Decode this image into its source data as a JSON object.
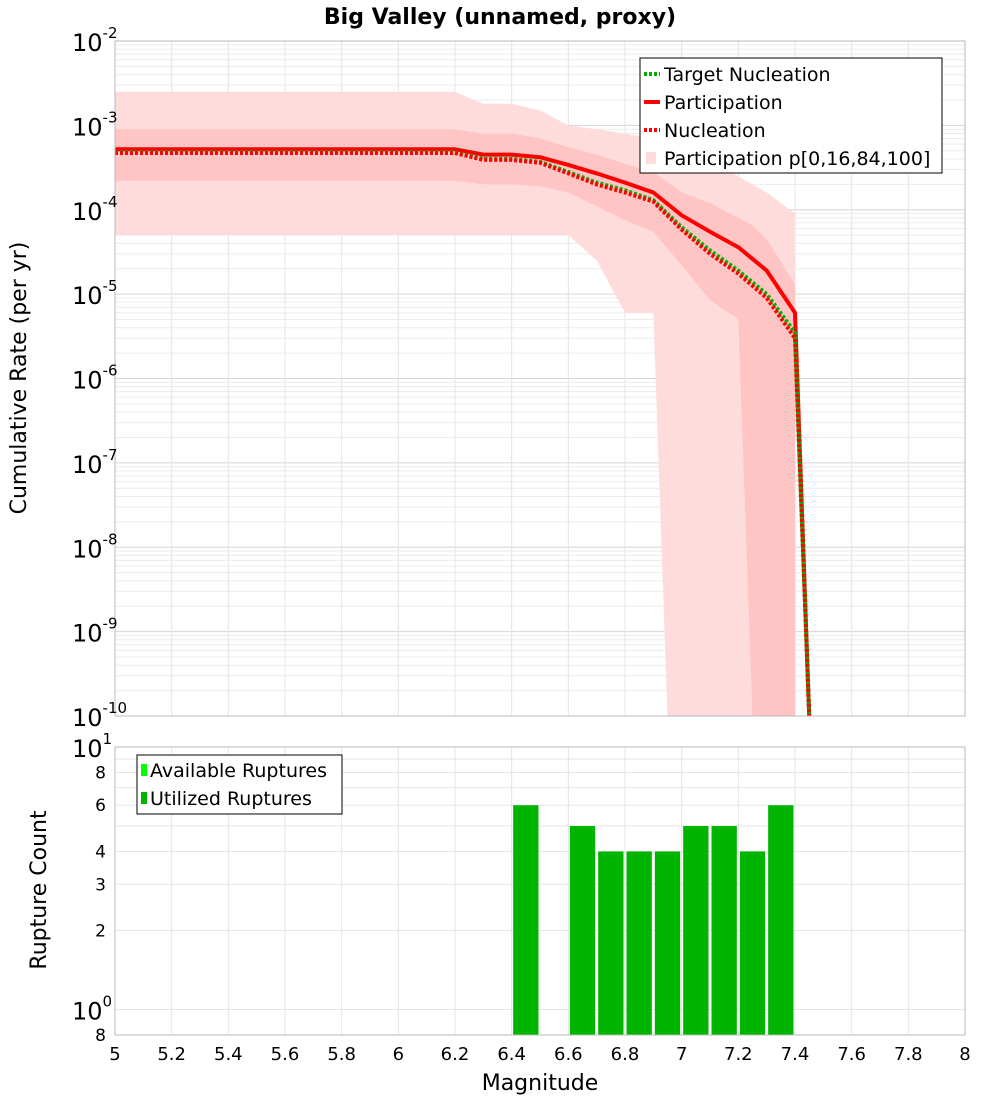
{
  "chart_data": [
    {
      "type": "line",
      "title": "Big Valley (unnamed, proxy)",
      "xlabel": "",
      "ylabel": "Cumulative Rate (per yr)",
      "xlim": [
        5,
        8
      ],
      "ylim": [
        1e-10,
        0.01
      ],
      "y_scale": "log",
      "grid": true,
      "legend_position": "top-right",
      "y_ticks": [
        {
          "base": "10",
          "exp": "-10"
        },
        {
          "base": "10",
          "exp": "-9"
        },
        {
          "base": "10",
          "exp": "-8"
        },
        {
          "base": "10",
          "exp": "-7"
        },
        {
          "base": "10",
          "exp": "-6"
        },
        {
          "base": "10",
          "exp": "-5"
        },
        {
          "base": "10",
          "exp": "-4"
        },
        {
          "base": "10",
          "exp": "-3"
        },
        {
          "base": "10",
          "exp": "-2"
        }
      ],
      "bands": [
        {
          "name": "Participation p[0,16,84,100]",
          "color": "#ffdcdc",
          "x": [
            5.0,
            6.2,
            6.3,
            6.4,
            6.5,
            6.6,
            6.7,
            6.8,
            6.9,
            6.95,
            7.0,
            7.1,
            7.2,
            7.25,
            7.3,
            7.35,
            7.4
          ],
          "lower": [
            5e-05,
            5e-05,
            5e-05,
            5e-05,
            5e-05,
            5e-05,
            2.5e-05,
            6e-06,
            6e-06,
            1e-10,
            1e-10,
            1e-10,
            1e-10,
            1e-10,
            1e-10,
            1e-10,
            1e-10
          ],
          "upper": [
            0.0025,
            0.0025,
            0.0018,
            0.0018,
            0.0015,
            0.001,
            0.0009,
            0.0008,
            0.0007,
            0.0006,
            0.0005,
            0.00038,
            0.00025,
            0.0002,
            0.00016,
            0.00012,
            9e-05
          ]
        },
        {
          "name": "",
          "color": "#ffc4c4",
          "x": [
            5.0,
            6.2,
            6.3,
            6.4,
            6.5,
            6.6,
            6.7,
            6.8,
            6.9,
            7.0,
            7.1,
            7.2,
            7.25,
            7.3,
            7.4
          ],
          "lower": [
            0.00022,
            0.00022,
            0.0002,
            0.0002,
            0.00019,
            0.00016,
            0.00011,
            7.5e-05,
            5.5e-05,
            2.2e-05,
            8.5e-06,
            5e-06,
            1e-10,
            1e-10,
            1e-10
          ],
          "upper": [
            0.0009,
            0.0009,
            0.0008,
            0.0008,
            0.0007,
            0.00055,
            0.00045,
            0.00035,
            0.00028,
            0.00016,
            0.00012,
            8e-05,
            6.5e-05,
            4.5e-05,
            1.3e-05
          ]
        }
      ],
      "series": [
        {
          "name": "Participation",
          "color": "#ff0000",
          "style": "solid",
          "x": [
            5.0,
            6.2,
            6.3,
            6.4,
            6.5,
            6.6,
            6.7,
            6.8,
            6.9,
            7.0,
            7.1,
            7.2,
            7.3,
            7.4,
            7.45
          ],
          "y": [
            0.00052,
            0.00052,
            0.00045,
            0.00045,
            0.00042,
            0.00034,
            0.00027,
            0.00021,
            0.00016,
            8.6e-05,
            5.5e-05,
            3.6e-05,
            1.9e-05,
            6e-06,
            1e-10
          ]
        },
        {
          "name": "Target Nucleation",
          "color": "#00b000",
          "style": "dotted",
          "x": [
            5.0,
            6.2,
            6.3,
            6.4,
            6.5,
            6.6,
            6.7,
            6.8,
            6.9,
            7.0,
            7.1,
            7.2,
            7.3,
            7.4,
            7.45
          ],
          "y": [
            0.00048,
            0.00048,
            0.0004,
            0.0004,
            0.00037,
            0.00028,
            0.00021,
            0.00017,
            0.00013,
            6.2e-05,
            3.3e-05,
            1.9e-05,
            1e-05,
            3.5e-06,
            1e-10
          ]
        },
        {
          "name": "Nucleation",
          "color": "#ff0000",
          "style": "dotted",
          "x": [
            5.0,
            6.2,
            6.3,
            6.4,
            6.5,
            6.6,
            6.7,
            6.8,
            6.9,
            7.0,
            7.1,
            7.2,
            7.3,
            7.4,
            7.45
          ],
          "y": [
            0.00047,
            0.00047,
            0.00039,
            0.00039,
            0.00036,
            0.00027,
            0.0002,
            0.00016,
            0.000125,
            5.8e-05,
            3e-05,
            1.75e-05,
            9e-06,
            3e-06,
            1e-10
          ]
        }
      ],
      "legend": [
        {
          "label": "Target Nucleation",
          "color": "#00b000",
          "style": "dotted"
        },
        {
          "label": "Participation",
          "color": "#ff0000",
          "style": "solid"
        },
        {
          "label": "Nucleation",
          "color": "#ff0000",
          "style": "dotted"
        },
        {
          "label": "Participation p[0,16,84,100]",
          "color": "#ffdcdc",
          "style": "patch"
        }
      ]
    },
    {
      "type": "bar",
      "title": "",
      "xlabel": "Magnitude",
      "ylabel": "Rupture Count",
      "xlim": [
        5,
        8
      ],
      "ylim": [
        0.8,
        10
      ],
      "y_scale": "log",
      "grid": true,
      "legend_position": "top-left",
      "x_ticks": [
        "5",
        "5.2",
        "5.4",
        "5.6",
        "5.8",
        "6",
        "6.2",
        "6.4",
        "6.6",
        "6.8",
        "7",
        "7.2",
        "7.4",
        "7.6",
        "7.8",
        "8"
      ],
      "y_ticks": [
        {
          "value": 0.8,
          "label": "8",
          "exp": ""
        },
        {
          "value": 1,
          "label": "10",
          "exp": "0"
        },
        {
          "value": 2,
          "label": "2",
          "exp": ""
        },
        {
          "value": 3,
          "label": "3",
          "exp": ""
        },
        {
          "value": 4,
          "label": "4",
          "exp": ""
        },
        {
          "value": 6,
          "label": "6",
          "exp": ""
        },
        {
          "value": 8,
          "label": "8",
          "exp": ""
        },
        {
          "value": 10,
          "label": "10",
          "exp": "1"
        }
      ],
      "bar_width": 0.1,
      "series": [
        {
          "name": "Utilized Ruptures",
          "color": "#00b400",
          "x": [
            6.45,
            6.65,
            6.75,
            6.85,
            6.95,
            7.05,
            7.15,
            7.25,
            7.35
          ],
          "values": [
            6,
            5,
            4,
            4,
            4,
            5,
            5,
            4,
            6
          ]
        }
      ],
      "legend": [
        {
          "label": "Available Ruptures",
          "color": "#00ff00"
        },
        {
          "label": "Utilized Ruptures",
          "color": "#00b400"
        }
      ]
    }
  ]
}
